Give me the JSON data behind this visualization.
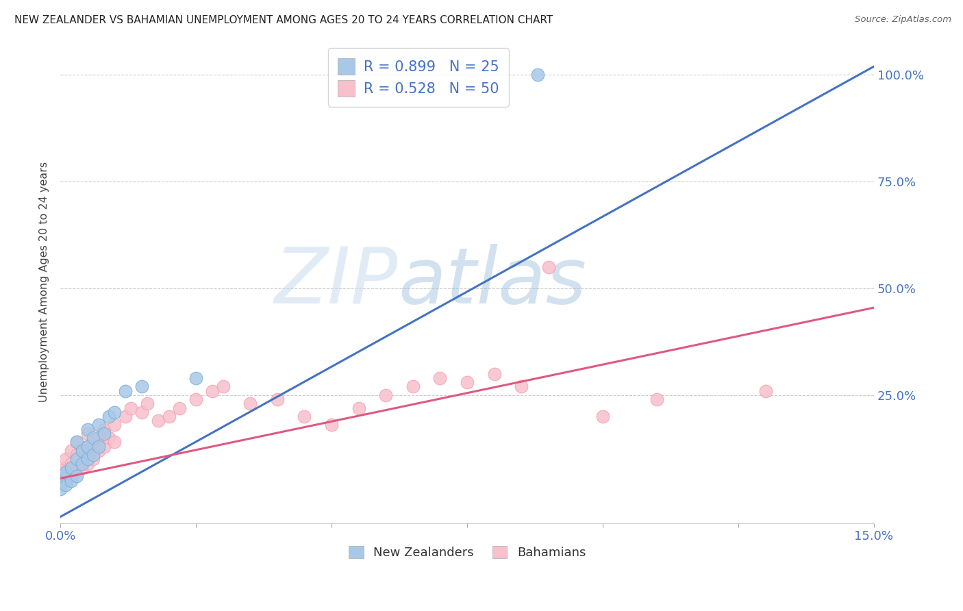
{
  "title": "NEW ZEALANDER VS BAHAMIAN UNEMPLOYMENT AMONG AGES 20 TO 24 YEARS CORRELATION CHART",
  "source": "Source: ZipAtlas.com",
  "tick_color": "#4472c4",
  "ylabel": "Unemployment Among Ages 20 to 24 years",
  "xlim": [
    0.0,
    0.15
  ],
  "ylim": [
    -0.05,
    1.08
  ],
  "nz_color": "#a8c8e8",
  "nz_edge_color": "#7bafd4",
  "nz_line_color": "#4472c4",
  "bah_color": "#f8c0cc",
  "bah_edge_color": "#f4a0b0",
  "bah_line_color": "#e05880",
  "nz_trend_x0": 0.0,
  "nz_trend_y0": -0.035,
  "nz_trend_x1": 0.15,
  "nz_trend_y1": 1.02,
  "bah_trend_x0": 0.0,
  "bah_trend_y0": 0.055,
  "bah_trend_x1": 0.15,
  "bah_trend_y1": 0.455,
  "watermark_zip": "ZIP",
  "watermark_atlas": "atlas",
  "background_color": "#ffffff",
  "grid_color": "#cccccc",
  "legend_r1": "R = 0.899",
  "legend_n1": "N = 25",
  "legend_r2": "R = 0.528",
  "legend_n2": "N = 50",
  "nz_x": [
    0.0,
    0.0,
    0.001,
    0.001,
    0.002,
    0.002,
    0.003,
    0.003,
    0.003,
    0.004,
    0.004,
    0.005,
    0.005,
    0.005,
    0.006,
    0.006,
    0.007,
    0.007,
    0.008,
    0.009,
    0.01,
    0.012,
    0.015,
    0.025,
    0.088
  ],
  "nz_y": [
    0.03,
    0.06,
    0.04,
    0.07,
    0.05,
    0.08,
    0.06,
    0.1,
    0.14,
    0.09,
    0.12,
    0.1,
    0.13,
    0.17,
    0.11,
    0.15,
    0.13,
    0.18,
    0.16,
    0.2,
    0.21,
    0.26,
    0.27,
    0.29,
    1.0
  ],
  "bah_x": [
    0.0,
    0.0,
    0.001,
    0.001,
    0.001,
    0.002,
    0.002,
    0.002,
    0.003,
    0.003,
    0.003,
    0.004,
    0.004,
    0.005,
    0.005,
    0.005,
    0.006,
    0.006,
    0.007,
    0.007,
    0.008,
    0.008,
    0.009,
    0.01,
    0.01,
    0.012,
    0.013,
    0.015,
    0.016,
    0.018,
    0.02,
    0.022,
    0.025,
    0.028,
    0.03,
    0.035,
    0.04,
    0.045,
    0.05,
    0.055,
    0.06,
    0.065,
    0.07,
    0.075,
    0.08,
    0.085,
    0.09,
    0.1,
    0.11,
    0.13
  ],
  "bah_y": [
    0.04,
    0.07,
    0.05,
    0.08,
    0.1,
    0.06,
    0.09,
    0.12,
    0.07,
    0.11,
    0.14,
    0.08,
    0.12,
    0.09,
    0.13,
    0.16,
    0.1,
    0.14,
    0.12,
    0.15,
    0.13,
    0.17,
    0.15,
    0.14,
    0.18,
    0.2,
    0.22,
    0.21,
    0.23,
    0.19,
    0.2,
    0.22,
    0.24,
    0.26,
    0.27,
    0.23,
    0.24,
    0.2,
    0.18,
    0.22,
    0.25,
    0.27,
    0.29,
    0.28,
    0.3,
    0.27,
    0.55,
    0.2,
    0.24,
    0.26
  ]
}
